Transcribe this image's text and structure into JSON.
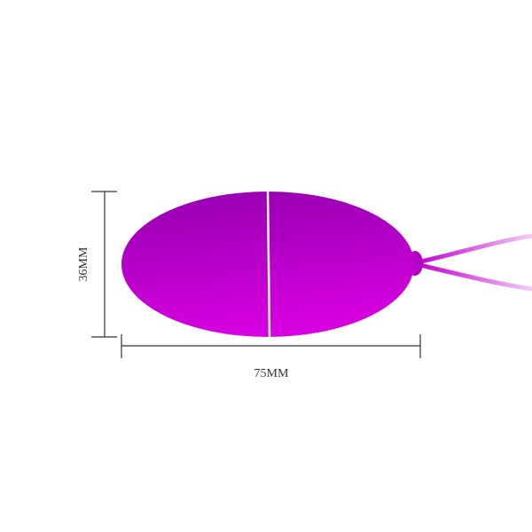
{
  "dimensions": {
    "height_label": "36MM",
    "width_label": "75MM"
  },
  "colors": {
    "product_top": "#9400ae",
    "product_bottom": "#d600e0",
    "cord": "#e9a6ee",
    "dimension_line": "#333333"
  }
}
